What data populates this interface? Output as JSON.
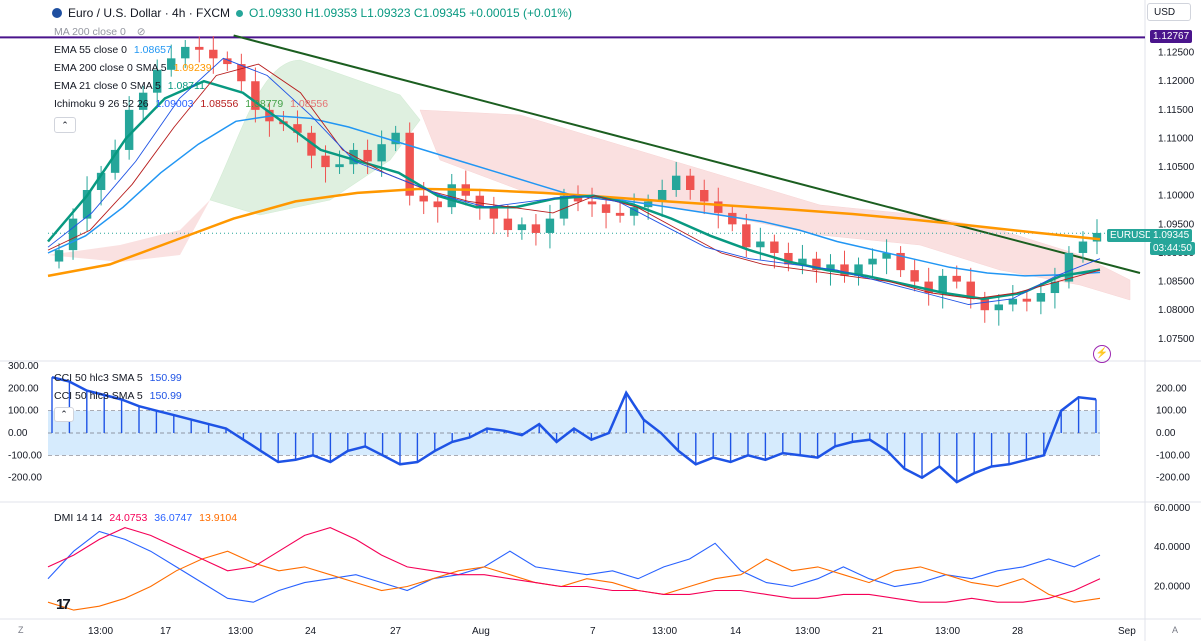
{
  "header": {
    "symbol": "Euro / U.S. Dollar · 4h · FXCM",
    "ohlc": "O1.09330 H1.09353 L1.09323 C1.09345 +0.00015 (+0.01%)"
  },
  "currency_selector": "USD",
  "legends": {
    "ma200": "MA 200 close 0",
    "ema55_label": "EMA 55 close 0",
    "ema55_val": "1.08657",
    "ema200_label": "EMA 200 close 0 SMA 5",
    "ema200_val": "1.09239",
    "ema21_label": "EMA 21 close 0 SMA 5",
    "ema21_val": "1.08711",
    "ichimoku_label": "Ichimoku 9 26 52 26",
    "ich_v1": "1.09003",
    "ich_v2": "1.08556",
    "ich_v3": "1.08779",
    "ich_v4": "1.08556",
    "cci_label_1": "CCI 50 hlc3 SMA 5",
    "cci_val_1": "150.99",
    "cci_label_2": "CCI 50 hlc3 SMA 5",
    "cci_val_2": "150.99",
    "dmi_label": "DMI 14 14",
    "dmi_v1": "24.0753",
    "dmi_v2": "36.0747",
    "dmi_v3": "13.9104"
  },
  "price_tags": {
    "hline": "1.12767",
    "symbol_tag": "EURUSD",
    "last": "1.09345",
    "countdown": "03:44:50"
  },
  "colors": {
    "up": "#26a69a",
    "down": "#ef5350",
    "ema55": "#2196f3",
    "ema200": "#ff9800",
    "ema21": "#089981",
    "trend": "#1b5e20",
    "hline": "#4a148c",
    "cci": "#1e53e5",
    "dmi_plus": "#2962ff",
    "dmi_minus": "#ff6d00",
    "adx": "#f50057"
  },
  "x_labels": [
    "13:00",
    "17",
    "13:00",
    "24",
    "27",
    "Aug",
    "7",
    "13:00",
    "14",
    "13:00",
    "21",
    "13:00",
    "28",
    "Sep"
  ],
  "chart_data": [
    {
      "type": "candlestick",
      "title": "Euro / U.S. Dollar · 4h · FXCM",
      "ylim": [
        1.072,
        1.13
      ],
      "y_ticks": [
        "1.12500",
        "1.12000",
        "1.11500",
        "1.11000",
        "1.10500",
        "1.10000",
        "1.09500",
        "1.09000",
        "1.08500",
        "1.08000",
        "1.07500"
      ],
      "horizontal_line": 1.12767,
      "trendline": [
        [
          0.17,
          1.128
        ],
        [
          1.0,
          1.0865
        ]
      ],
      "price_path": [
        1.0905,
        1.096,
        1.101,
        1.104,
        1.108,
        1.115,
        1.118,
        1.122,
        1.124,
        1.126,
        1.1255,
        1.124,
        1.123,
        1.12,
        1.115,
        1.113,
        1.1125,
        1.111,
        1.107,
        1.105,
        1.1055,
        1.108,
        1.106,
        1.109,
        1.111,
        1.1,
        1.099,
        1.098,
        1.102,
        1.1,
        1.098,
        1.096,
        1.094,
        1.095,
        1.0935,
        1.096,
        1.1,
        1.099,
        1.0985,
        1.097,
        1.0965,
        1.098,
        1.099,
        1.101,
        1.1035,
        1.101,
        1.099,
        1.097,
        1.095,
        1.091,
        1.092,
        1.09,
        1.088,
        1.089,
        1.087,
        1.088,
        1.086,
        1.088,
        1.089,
        1.09,
        1.087,
        1.085,
        1.083,
        1.086,
        1.085,
        1.082,
        1.08,
        1.081,
        1.082,
        1.0815,
        1.083,
        1.085,
        1.09,
        1.092,
        1.0935
      ],
      "series": [
        {
          "name": "EMA 55",
          "values": [
            1.09,
            1.093,
            1.098,
            1.104,
            1.109,
            1.113,
            1.114,
            1.1135,
            1.112,
            1.11,
            1.108,
            1.106,
            1.104,
            1.102,
            1.1,
            1.0995,
            1.0985,
            1.0975,
            1.0965,
            1.0955,
            1.094,
            1.092,
            1.0905,
            1.089,
            1.0875,
            1.0865,
            1.086,
            1.0862,
            1.0866
          ]
        },
        {
          "name": "EMA 200",
          "values": [
            1.086,
            1.088,
            1.092,
            1.096,
            1.099,
            1.1005,
            1.1012,
            1.101,
            1.1005,
            1.0998,
            1.099,
            1.0983,
            1.0976,
            1.0968,
            1.0958,
            1.0947,
            1.0935,
            1.0924
          ]
        },
        {
          "name": "EMA 21",
          "values": [
            1.092,
            1.1,
            1.11,
            1.117,
            1.12,
            1.118,
            1.113,
            1.108,
            1.106,
            1.104,
            1.1,
            1.098,
            1.098,
            1.0995,
            1.1,
            1.0985,
            1.096,
            1.093,
            1.0905,
            1.0885,
            1.087,
            1.086,
            1.0845,
            1.083,
            1.082,
            1.083,
            1.086,
            1.0871
          ]
        }
      ],
      "ichimoku_cloud": "bullish then bearish"
    },
    {
      "type": "bar",
      "title": "CCI 50 hlc3 SMA 5",
      "ylim": [
        -300,
        300
      ],
      "y_ticks": [
        "300.00",
        "200.00",
        "100.00",
        "0.00",
        "-100.00",
        "-200.00"
      ],
      "band": [
        -100,
        100
      ],
      "values": [
        250,
        230,
        190,
        170,
        150,
        120,
        100,
        80,
        60,
        40,
        20,
        -30,
        -80,
        -130,
        -120,
        -100,
        -130,
        -80,
        -60,
        -100,
        -140,
        -130,
        -80,
        -40,
        -20,
        20,
        10,
        -10,
        40,
        -40,
        20,
        -30,
        0,
        180,
        60,
        0,
        -80,
        -140,
        -110,
        -130,
        -100,
        -120,
        -90,
        -100,
        -110,
        -60,
        -40,
        -30,
        -80,
        -160,
        -200,
        -150,
        -220,
        -180,
        -150,
        -140,
        -120,
        -100,
        100,
        160,
        151
      ]
    },
    {
      "type": "line",
      "title": "DMI 14 14",
      "ylim": [
        5,
        62
      ],
      "y_ticks": [
        "60.0000",
        "40.0000",
        "20.0000"
      ],
      "series": [
        {
          "name": "+DI",
          "values": [
            24,
            38,
            48,
            44,
            38,
            30,
            22,
            14,
            12,
            18,
            22,
            24,
            26,
            22,
            18,
            24,
            26,
            30,
            38,
            30,
            28,
            26,
            28,
            24,
            30,
            34,
            42,
            28,
            22,
            20,
            24,
            30,
            24,
            20,
            22,
            26,
            24,
            28,
            30,
            34,
            30,
            36
          ]
        },
        {
          "name": "-DI",
          "values": [
            12,
            8,
            10,
            14,
            20,
            28,
            34,
            38,
            32,
            28,
            30,
            26,
            22,
            18,
            20,
            24,
            28,
            30,
            26,
            22,
            20,
            24,
            22,
            18,
            16,
            20,
            24,
            26,
            34,
            28,
            30,
            26,
            22,
            28,
            30,
            26,
            22,
            20,
            24,
            16,
            12,
            14
          ]
        },
        {
          "name": "ADX",
          "values": [
            30,
            36,
            44,
            50,
            46,
            40,
            34,
            28,
            30,
            38,
            46,
            50,
            44,
            36,
            30,
            28,
            26,
            26,
            24,
            22,
            20,
            20,
            18,
            18,
            16,
            16,
            18,
            18,
            16,
            14,
            14,
            16,
            16,
            14,
            12,
            12,
            14,
            12,
            12,
            14,
            18,
            24
          ]
        }
      ]
    }
  ]
}
